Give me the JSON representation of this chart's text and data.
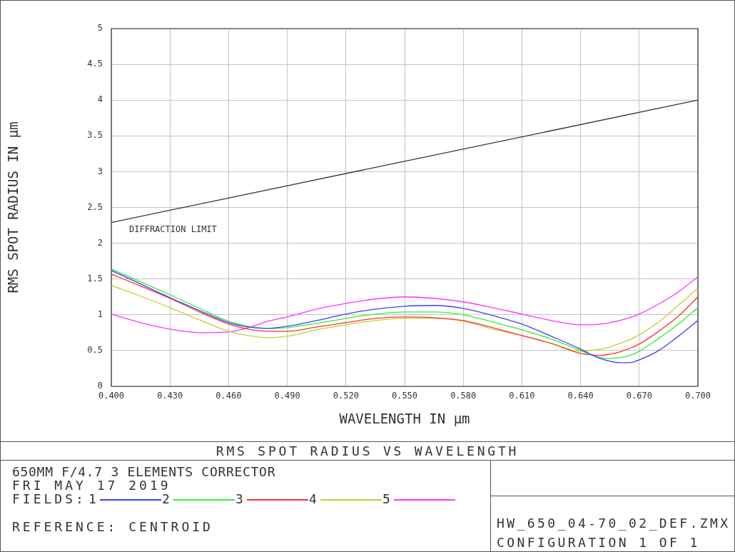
{
  "chart_data": {
    "type": "line",
    "title": "RMS SPOT RADIUS VS WAVELENGTH",
    "subtitle": "650MM F/4.7 3 ELEMENTS CORRECTOR",
    "xlabel": "WAVELENGTH IN µm",
    "ylabel": "RMS SPOT RADIUS IN µm",
    "legend_title": "FIELDS:",
    "annotations": [
      "DIFFRACTION LIMIT",
      "FRI MAY 17 2019",
      "REFERENCE: CENTROID",
      "HW_650_04-70_02_DEF.ZMX",
      "CONFIGURATION 1 OF 1"
    ],
    "x": [
      0.4,
      0.415,
      0.43,
      0.445,
      0.46,
      0.47,
      0.48,
      0.49,
      0.505,
      0.52,
      0.535,
      0.55,
      0.565,
      0.58,
      0.595,
      0.61,
      0.625,
      0.64,
      0.645,
      0.65,
      0.655,
      0.66,
      0.665,
      0.67,
      0.68,
      0.69,
      0.7
    ],
    "series": [
      {
        "name": "1",
        "color": "#3f3fff",
        "values": [
          1.62,
          1.43,
          1.24,
          1.06,
          0.89,
          0.83,
          0.81,
          0.84,
          0.92,
          1.01,
          1.08,
          1.12,
          1.13,
          1.09,
          0.99,
          0.87,
          0.7,
          0.52,
          0.45,
          0.39,
          0.35,
          0.33,
          0.33,
          0.37,
          0.5,
          0.7,
          0.92
        ]
      },
      {
        "name": "2",
        "color": "#33ee33",
        "values": [
          1.64,
          1.46,
          1.28,
          1.09,
          0.91,
          0.84,
          0.81,
          0.82,
          0.88,
          0.95,
          1.01,
          1.04,
          1.04,
          1.0,
          0.9,
          0.79,
          0.66,
          0.5,
          0.44,
          0.4,
          0.39,
          0.4,
          0.43,
          0.49,
          0.67,
          0.87,
          1.1
        ]
      },
      {
        "name": "3",
        "color": "#ff3333",
        "values": [
          1.57,
          1.4,
          1.23,
          1.04,
          0.87,
          0.8,
          0.77,
          0.77,
          0.83,
          0.89,
          0.95,
          0.97,
          0.96,
          0.92,
          0.82,
          0.71,
          0.6,
          0.46,
          0.44,
          0.43,
          0.45,
          0.48,
          0.53,
          0.59,
          0.77,
          0.98,
          1.25
        ]
      },
      {
        "name": "4",
        "color": "#cccc33",
        "values": [
          1.41,
          1.26,
          1.1,
          0.93,
          0.77,
          0.71,
          0.68,
          0.7,
          0.79,
          0.86,
          0.92,
          0.95,
          0.95,
          0.91,
          0.8,
          0.71,
          0.6,
          0.49,
          0.5,
          0.52,
          0.55,
          0.6,
          0.65,
          0.72,
          0.9,
          1.13,
          1.37
        ]
      },
      {
        "name": "5",
        "color": "#ff33ff",
        "values": [
          1.01,
          0.89,
          0.8,
          0.75,
          0.76,
          0.82,
          0.91,
          0.97,
          1.08,
          1.16,
          1.22,
          1.25,
          1.23,
          1.18,
          1.1,
          1.01,
          0.92,
          0.86,
          0.86,
          0.87,
          0.89,
          0.92,
          0.96,
          1.01,
          1.15,
          1.32,
          1.53
        ]
      },
      {
        "color": "#333333",
        "x": [
          0.4,
          0.7
        ],
        "values": [
          2.29,
          4.0
        ]
      }
    ],
    "xlim": [
      0.4,
      0.7
    ],
    "ylim": [
      0,
      5
    ],
    "xticks": [
      {
        "value": 0.4,
        "label": "0.400"
      },
      {
        "value": 0.43,
        "label": "0.430"
      },
      {
        "value": 0.46,
        "label": "0.460"
      },
      {
        "value": 0.49,
        "label": "0.490"
      },
      {
        "value": 0.52,
        "label": "0.520"
      },
      {
        "value": 0.55,
        "label": "0.550"
      },
      {
        "value": 0.58,
        "label": "0.580"
      },
      {
        "value": 0.61,
        "label": "0.610"
      },
      {
        "value": 0.64,
        "label": "0.640"
      },
      {
        "value": 0.67,
        "label": "0.670"
      },
      {
        "value": 0.7,
        "label": "0.700"
      }
    ],
    "yticks": [
      0,
      0.5,
      1,
      1.5,
      2,
      2.5,
      3,
      3.5,
      4,
      4.5,
      5
    ],
    "grid": true,
    "legend": "bottom"
  }
}
